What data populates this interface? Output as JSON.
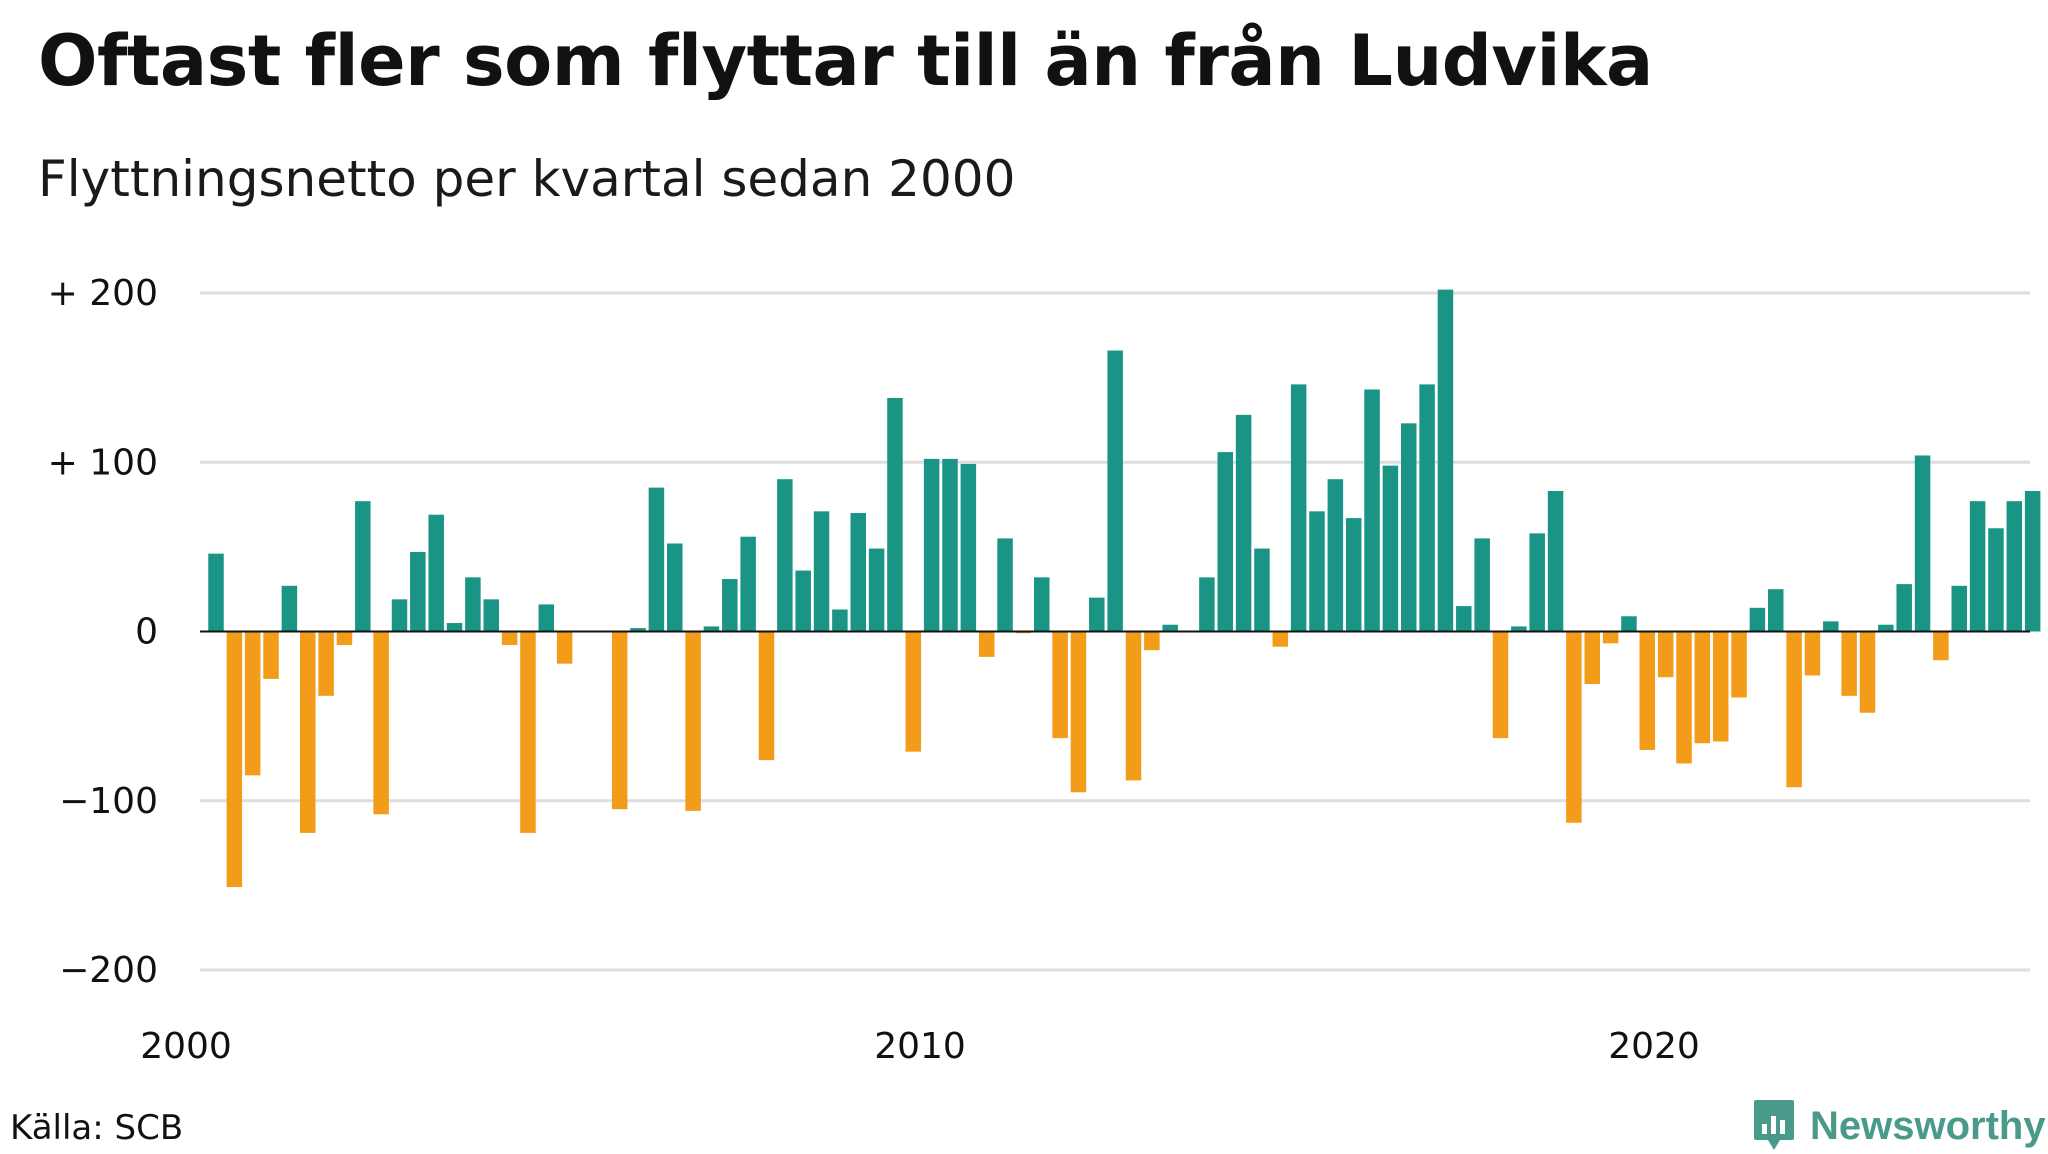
{
  "title": "Oftast fler som flyttar till än från Ludvika",
  "subtitle": "Flyttningsnetto per kvartal sedan 2000",
  "source": "Källa: SCB",
  "brand": {
    "name": "Newsworthy",
    "icon": "newsworthy-logo-icon",
    "color": "#4a9a8c"
  },
  "chart_data": {
    "type": "bar",
    "ylim": [
      -200,
      200
    ],
    "yticks": [
      {
        "value": 200,
        "label": "+ 200"
      },
      {
        "value": 100,
        "label": "+ 100"
      },
      {
        "value": 0,
        "label": "0"
      },
      {
        "value": -100,
        "label": "−100"
      },
      {
        "value": -200,
        "label": "−200"
      }
    ],
    "xticks": [
      {
        "year": 2000,
        "label": "2000"
      },
      {
        "year": 2010,
        "label": "2010"
      },
      {
        "year": 2020,
        "label": "2020"
      }
    ],
    "grid": true,
    "colors": {
      "positive": "#1a9585",
      "negative": "#f39c1a",
      "grid": "#dedede",
      "baseline": "#111111"
    },
    "start": "2000 Q1",
    "values": [
      46,
      -151,
      -85,
      -28,
      27,
      -119,
      -38,
      -8,
      77,
      -108,
      19,
      47,
      69,
      5,
      32,
      19,
      -8,
      -119,
      16,
      -19,
      0,
      0,
      -105,
      2,
      85,
      52,
      -106,
      3,
      31,
      56,
      -76,
      90,
      36,
      71,
      13,
      70,
      49,
      138,
      -71,
      102,
      102,
      99,
      -15,
      55,
      -1,
      32,
      -63,
      -95,
      20,
      166,
      -88,
      -11,
      4,
      0,
      32,
      106,
      128,
      49,
      -9,
      146,
      71,
      90,
      67,
      143,
      98,
      123,
      146,
      202,
      15,
      55,
      -63,
      3,
      58,
      83,
      -113,
      -31,
      -7,
      9,
      -70,
      -27,
      -78,
      -66,
      -65,
      -39,
      14,
      25,
      -92,
      -26,
      6,
      -38,
      -48,
      4,
      28,
      104,
      -17,
      27,
      77,
      61,
      77,
      83
    ]
  }
}
